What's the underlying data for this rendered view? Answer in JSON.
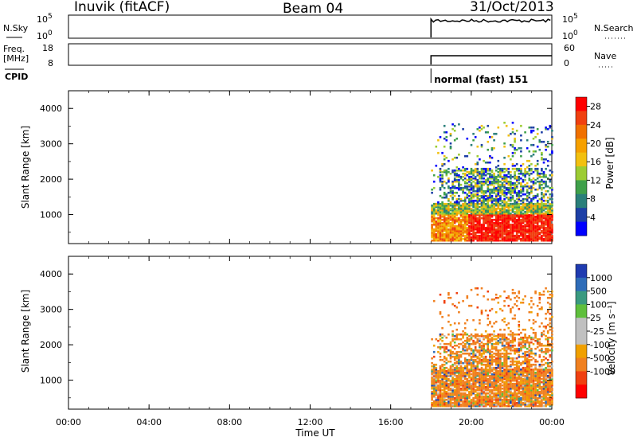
{
  "header": {
    "station": "Inuvik (fitACF)",
    "beam": "Beam 04",
    "date": "31/Oct/2013"
  },
  "time_axis": {
    "label": "Time UT",
    "ticks": [
      "00:00",
      "04:00",
      "08:00",
      "12:00",
      "16:00",
      "20:00",
      "00:00"
    ],
    "tick_hours": [
      0,
      4,
      8,
      12,
      16,
      20,
      24
    ],
    "range_hours": [
      0,
      24
    ]
  },
  "top_panels": {
    "nsky": {
      "label": "N.Sky",
      "top": "10^5",
      "bottom": "10^0",
      "right_label": "N.Search",
      "right_top": "10^5",
      "right_bottom": "10^0"
    },
    "freq": {
      "label_line1": "Freq.",
      "label_line2": "[MHz]",
      "left_top": "18",
      "left_bottom": "8",
      "right_label": "Nave",
      "right_top": "60",
      "right_bottom": "0"
    },
    "cpid": {
      "label": "CPID",
      "text": "normal (fast) 151",
      "start_hour": 18.0
    },
    "nsky_colors": {
      "trace": "#000000"
    }
  },
  "chart_data": [
    {
      "type": "heatmap",
      "title": "",
      "parameter": "Power",
      "xlabel": "Time UT",
      "ylabel": "Slant Range [km]",
      "xlim": [
        0,
        24
      ],
      "ylim": [
        180,
        4500
      ],
      "yticks": [
        "1000",
        "2000",
        "3000",
        "4000"
      ],
      "ytick_values": [
        1000,
        2000,
        3000,
        4000
      ],
      "colorbar": {
        "label": "Power [dB]",
        "tick_labels": [
          "4",
          "8",
          "12",
          "16",
          "20",
          "24",
          "28"
        ],
        "tick_values": [
          4,
          8,
          12,
          16,
          20,
          24,
          28
        ],
        "range": [
          0,
          30
        ],
        "colors": [
          "#0000ff",
          "#1d3fa6",
          "#2a7f7a",
          "#3fa04a",
          "#9ccc33",
          "#f2c010",
          "#f6a000",
          "#f07000",
          "#f04010",
          "#ff0000"
        ]
      },
      "data_start_hour": 18.0,
      "scatter_regions": [
        {
          "range_km": [
            200,
            1500
          ],
          "peak_hour": 22.0,
          "level": "high"
        },
        {
          "range_km": [
            1000,
            2500
          ],
          "peak_hour": 21.5,
          "level": "medium"
        },
        {
          "range_km": [
            2500,
            3500
          ],
          "peak_hour": 22.5,
          "level": "low"
        }
      ]
    },
    {
      "type": "heatmap",
      "title": "",
      "parameter": "Velocity",
      "xlabel": "Time UT",
      "ylabel": "Slant Range [km]",
      "xlim": [
        0,
        24
      ],
      "ylim": [
        180,
        4500
      ],
      "yticks": [
        "1000",
        "2000",
        "3000",
        "4000"
      ],
      "ytick_values": [
        1000,
        2000,
        3000,
        4000
      ],
      "colorbar": {
        "label": "Velocity [m s⁻¹]",
        "tick_labels": [
          "1000",
          "500",
          "100",
          "25",
          "-25",
          "-100",
          "-500",
          "-1000"
        ],
        "tick_values": [
          1000,
          500,
          100,
          25,
          -25,
          -100,
          -500,
          -1000
        ],
        "colors": [
          "#1f3bb0",
          "#2e6cb8",
          "#3a9a80",
          "#5fbf3c",
          "#c0c0c0",
          "#c0c0c0",
          "#f0a000",
          "#f08020",
          "#f04010",
          "#ff0000"
        ]
      },
      "data_start_hour": 18.0,
      "scatter_regions": [
        {
          "range_km": [
            200,
            1500
          ],
          "peak_hour": 22.0,
          "level": "negative"
        },
        {
          "range_km": [
            1000,
            2500
          ],
          "peak_hour": 21.5,
          "level": "negative"
        },
        {
          "range_km": [
            2500,
            3500
          ],
          "peak_hour": 22.5,
          "level": "negative"
        }
      ]
    }
  ]
}
